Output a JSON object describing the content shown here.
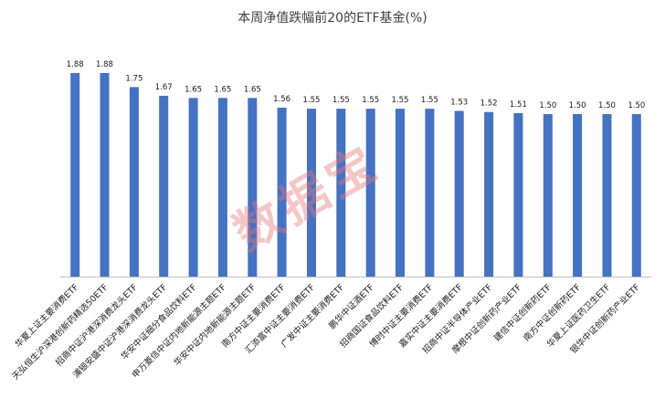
{
  "chart_data": {
    "type": "bar",
    "title": "本周净值跌幅前20的ETF基金(%)",
    "categories": [
      "华夏上证主要消费ETF",
      "天弘恒生沪深港创新药精选50ETF",
      "招商中证沪港深消费龙头ETF",
      "浦银安盛中证沪港深消费龙头ETF",
      "华安中证细分食品饮料ETF",
      "申万菱信中证内地新能源主题ETF",
      "华安中证内地新能源主题ETF",
      "南方中证主要消费ETF",
      "汇添富中证主要消费ETF",
      "广发中证主要消费ETF",
      "鹏华中证酒ETF",
      "招商国证食品饮料ETF",
      "博时中证主要消费ETF",
      "嘉实中证主要消费ETF",
      "招商中证半导体产业ETF",
      "摩根中证创新药产业ETF",
      "建信中证创新药ETF",
      "南方中证创新药ETF",
      "华夏上证医药卫生ETF",
      "银华中证创新药产业ETF"
    ],
    "values": [
      1.88,
      1.88,
      1.75,
      1.67,
      1.65,
      1.65,
      1.65,
      1.56,
      1.55,
      1.55,
      1.55,
      1.55,
      1.55,
      1.53,
      1.52,
      1.51,
      1.5,
      1.5,
      1.5,
      1.5
    ],
    "value_labels": [
      "1.88",
      "1.88",
      "1.75",
      "1.67",
      "1.65",
      "1.65",
      "1.65",
      "1.56",
      "1.55",
      "1.55",
      "1.55",
      "1.55",
      "1.55",
      "1.53",
      "1.52",
      "1.51",
      "1.50",
      "1.50",
      "1.50",
      "1.50"
    ],
    "ylim": [
      0,
      2.2
    ],
    "grid": false,
    "bar_color": "#4472c4"
  },
  "watermark": "数据宝"
}
